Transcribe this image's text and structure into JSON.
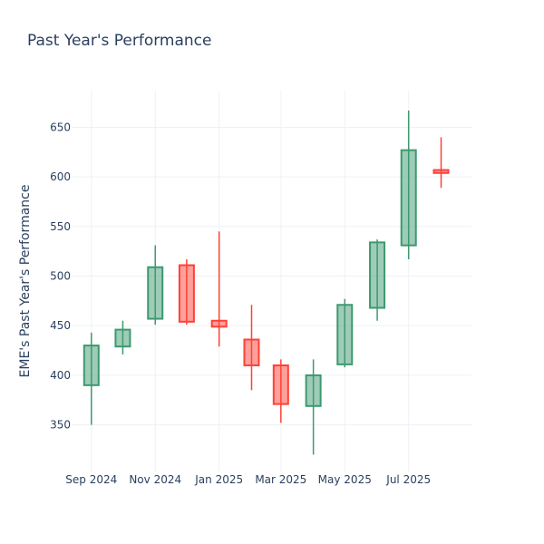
{
  "chart_data": {
    "type": "candlestick",
    "title": "Past Year's Performance",
    "xlabel": "",
    "ylabel": "EME's Past Year's Performance",
    "grid": true,
    "ylim": [
      303,
      687
    ],
    "xlim": [
      "2024-08-14",
      "2025-08-30"
    ],
    "y_ticks": [
      350,
      400,
      450,
      500,
      550,
      600,
      650
    ],
    "x_ticks": [
      {
        "date": "2024-09-01",
        "label": "Sep 2024"
      },
      {
        "date": "2024-11-01",
        "label": "Nov 2024"
      },
      {
        "date": "2025-01-01",
        "label": "Jan 2025"
      },
      {
        "date": "2025-03-01",
        "label": "Mar 2025"
      },
      {
        "date": "2025-05-01",
        "label": "May 2025"
      },
      {
        "date": "2025-07-01",
        "label": "Jul 2025"
      }
    ],
    "increasing_color": "#3d9970",
    "decreasing_color": "#ff4136",
    "candles": [
      {
        "date": "2024-09-01",
        "open": 390,
        "high": 443,
        "low": 350,
        "close": 430
      },
      {
        "date": "2024-10-01",
        "open": 429,
        "high": 455,
        "low": 421,
        "close": 446
      },
      {
        "date": "2024-11-01",
        "open": 457,
        "high": 531,
        "low": 451,
        "close": 509
      },
      {
        "date": "2024-12-01",
        "open": 511,
        "high": 517,
        "low": 451,
        "close": 454
      },
      {
        "date": "2025-01-01",
        "open": 455,
        "high": 545,
        "low": 429,
        "close": 449
      },
      {
        "date": "2025-02-01",
        "open": 436,
        "high": 471,
        "low": 385,
        "close": 410
      },
      {
        "date": "2025-03-01",
        "open": 410,
        "high": 416,
        "low": 352,
        "close": 371
      },
      {
        "date": "2025-04-01",
        "open": 369,
        "high": 416,
        "low": 320,
        "close": 400
      },
      {
        "date": "2025-05-01",
        "open": 411,
        "high": 477,
        "low": 408,
        "close": 471
      },
      {
        "date": "2025-06-01",
        "open": 468,
        "high": 537,
        "low": 455,
        "close": 534
      },
      {
        "date": "2025-07-01",
        "open": 531,
        "high": 667,
        "low": 517,
        "close": 627
      },
      {
        "date": "2025-08-01",
        "open": 607,
        "high": 640,
        "low": 589,
        "close": 604
      }
    ]
  }
}
